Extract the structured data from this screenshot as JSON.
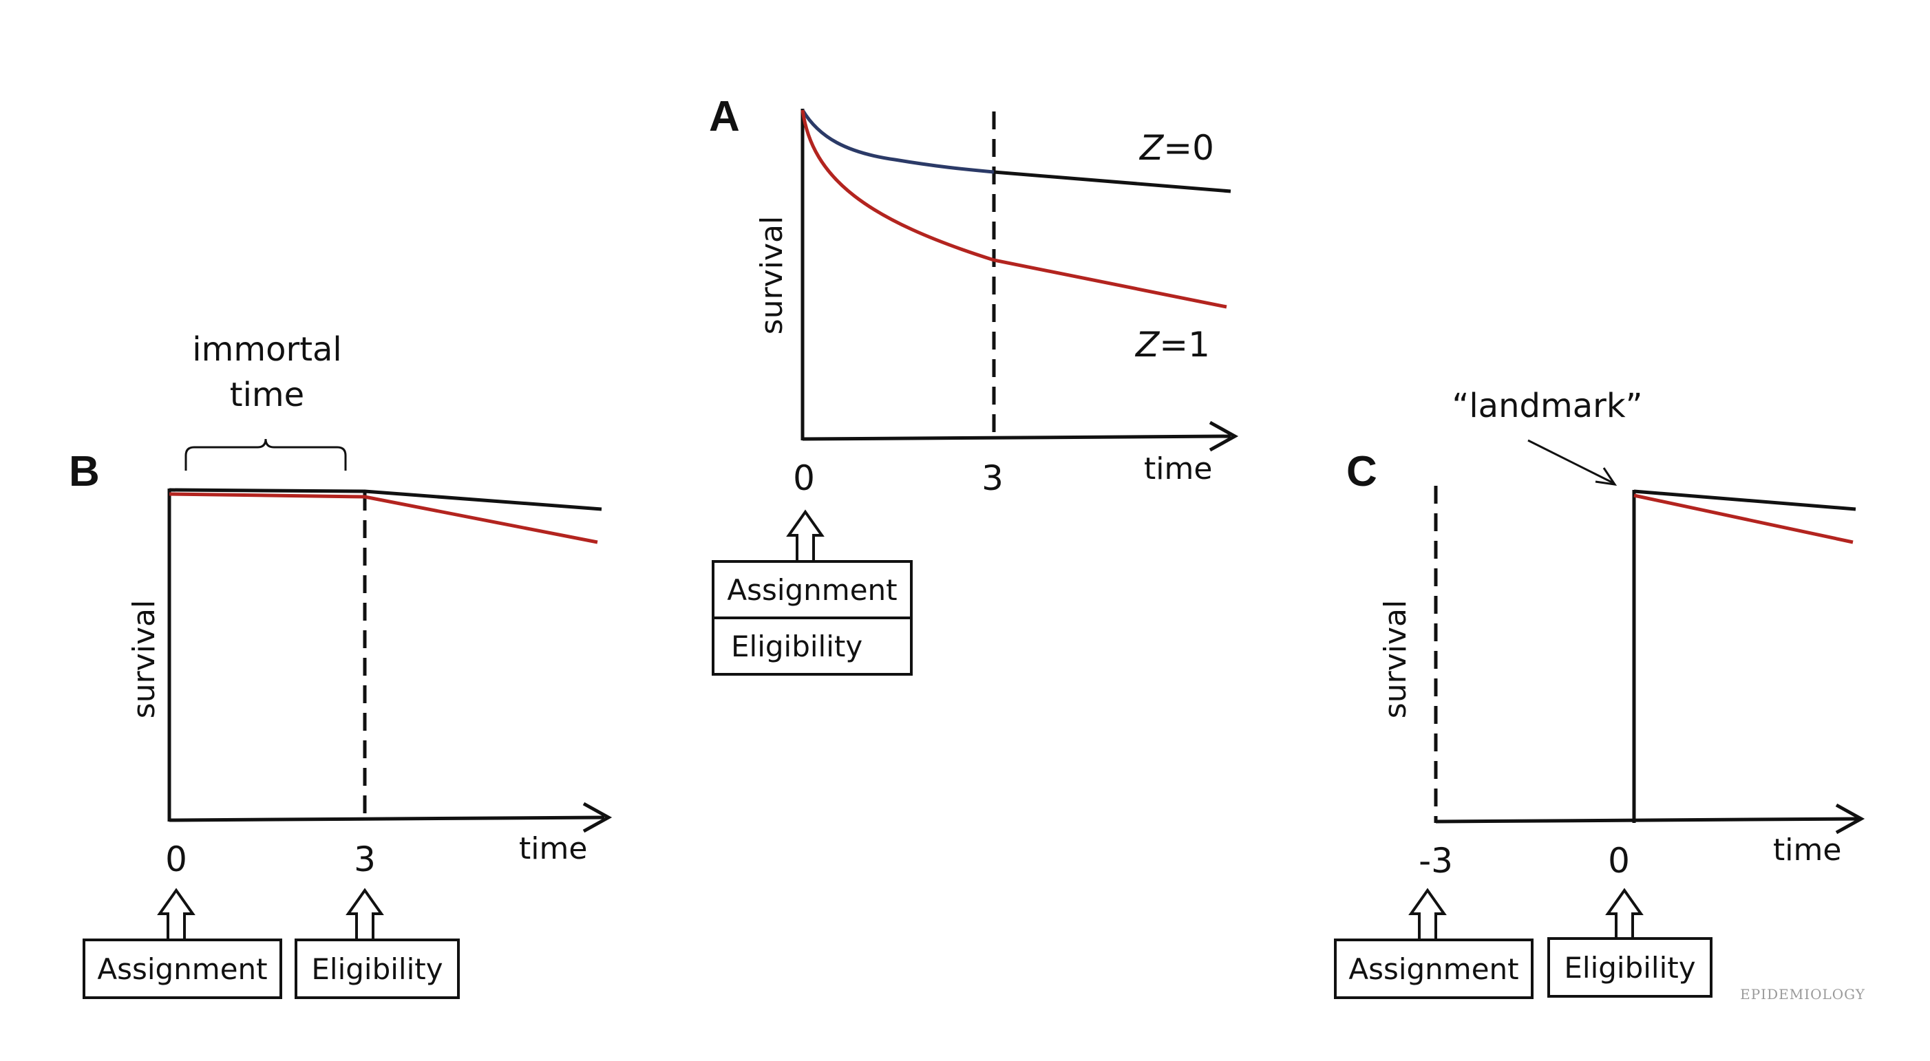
{
  "panels": {
    "A": {
      "letter": "A",
      "y_label": "survival",
      "x_label": "time",
      "ticks": [
        "0",
        "3"
      ],
      "curve_labels": {
        "z0": {
          "var": "Z",
          "rest": "=0"
        },
        "z1": {
          "var": "Z",
          "rest": "=1"
        }
      },
      "boxes": [
        "Assignment",
        "Eligibility"
      ]
    },
    "B": {
      "letter": "B",
      "y_label": "survival",
      "x_label": "time",
      "ticks": [
        "0",
        "3"
      ],
      "brace_label_line1": "immortal",
      "brace_label_line2": "time",
      "boxes": [
        "Assignment",
        "Eligibility"
      ]
    },
    "C": {
      "letter": "C",
      "y_label": "survival",
      "x_label": "time",
      "ticks": [
        "-3",
        "0"
      ],
      "landmark_label": "“landmark”",
      "boxes": [
        "Assignment",
        "Eligibility"
      ]
    }
  },
  "watermark": "EPIDEMIOLOGY",
  "colors": {
    "axis": "#111111",
    "z0_curve": "#111111",
    "z0_curve_early": "#2b3a67",
    "z1_curve": "#b3241f"
  }
}
